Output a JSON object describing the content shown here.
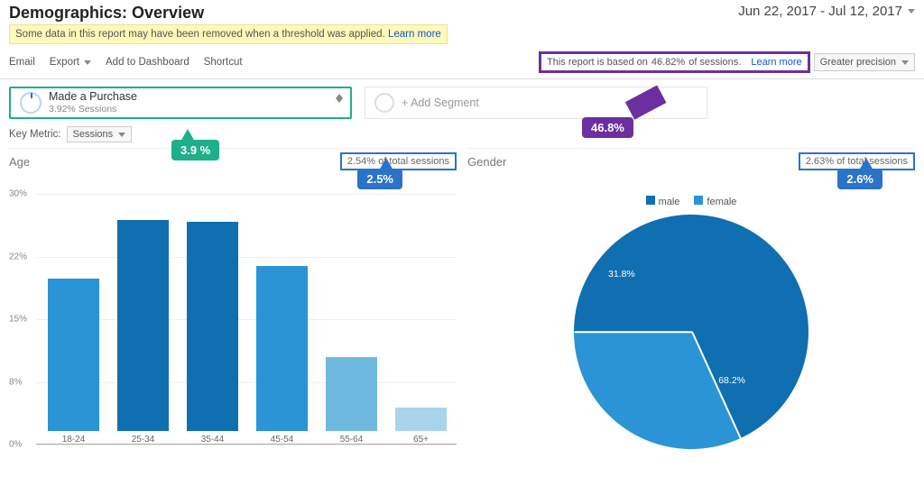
{
  "header": {
    "title": "Demographics: Overview",
    "date_range": "Jun 22, 2017 - Jul 12, 2017"
  },
  "banner": {
    "text": "Some data in this report may have been removed when a threshold was applied.",
    "link": "Learn more"
  },
  "toolbar": {
    "email": "Email",
    "export": "Export",
    "add_dash": "Add to Dashboard",
    "shortcut": "Shortcut"
  },
  "sampling": {
    "text_prefix": "This report is based on ",
    "pct": "46.82%",
    "text_suffix": " of sessions.",
    "link": "Learn more",
    "precision": "Greater precision"
  },
  "segments": {
    "primary_title": "Made a Purchase",
    "primary_sub": "3.92% Sessions",
    "add_label": "+ Add Segment"
  },
  "key_metric": {
    "label": "Key Metric:",
    "value": "Sessions"
  },
  "callouts": {
    "green": "3.9 %",
    "purple": "46.8%",
    "blue_age": "2.5%",
    "blue_gender": "2.6%"
  },
  "age_chart": {
    "title": "Age",
    "total_sessions": "2.54% of total sessions",
    "y_ticks": [
      "0%",
      "8%",
      "15%",
      "22%",
      "30%"
    ],
    "categories": [
      "18-24",
      "25-34",
      "35-44",
      "45-54",
      "55-64",
      "65+"
    ],
    "values_pct": [
      18.2,
      25.3,
      25.0,
      19.8,
      8.9,
      2.8
    ],
    "ymax": 30,
    "bar_colors": [
      "#2a94d6",
      "#0f6fb0",
      "#0f6fb0",
      "#2a94d6",
      "#6fb9e0",
      "#a9d4ec"
    ],
    "grid_color": "#eeeeee",
    "axis_color": "#aaaaaa",
    "label_color": "#888888"
  },
  "gender_chart": {
    "title": "Gender",
    "total_sessions": "2.63% of total sessions",
    "legend": [
      {
        "label": "male",
        "color": "#0f6fb0"
      },
      {
        "label": "female",
        "color": "#2a94d6"
      }
    ],
    "slices": [
      {
        "label": "68.2%",
        "value": 68.2,
        "color": "#0f6fb0"
      },
      {
        "label": "31.8%",
        "value": 31.8,
        "color": "#2a94d6"
      }
    ]
  },
  "colors": {
    "accent_green": "#1db08a",
    "accent_purple": "#6b2fa0",
    "accent_blue": "#2a73c9"
  }
}
